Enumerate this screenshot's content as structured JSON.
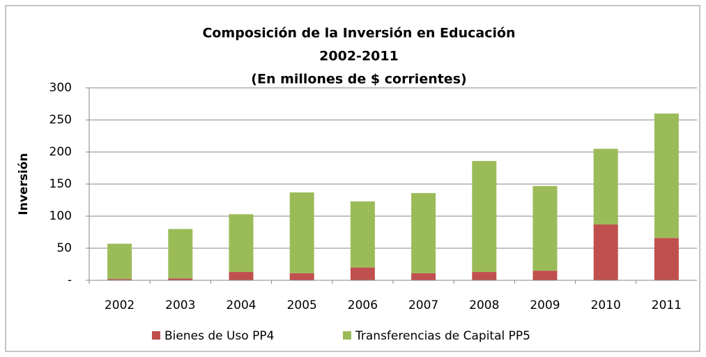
{
  "chart_data": {
    "type": "stacked_bar",
    "title": [
      "Composición de la Inversión  en Educación",
      "2002-2011",
      "(En millones de $ corrientes)"
    ],
    "y_label": "Inversión",
    "categories": [
      "2002",
      "2003",
      "2004",
      "2005",
      "2006",
      "2007",
      "2008",
      "2009",
      "2010",
      "2011"
    ],
    "series": [
      {
        "name": "Bienes de Uso PP4",
        "color": "#c0504d",
        "values": [
          2,
          3,
          13,
          11,
          20,
          11,
          13,
          15,
          87,
          66
        ]
      },
      {
        "name": "Transferencias de Capital PP5",
        "color": "#9bbb59",
        "values": [
          55,
          77,
          90,
          126,
          103,
          125,
          173,
          132,
          118,
          194
        ]
      }
    ],
    "ylim": [
      0,
      300
    ],
    "yticks": [
      {
        "value": 0,
        "label": "-"
      },
      50,
      100,
      150,
      200,
      250,
      300
    ],
    "grid": true,
    "legend": "bottom"
  }
}
